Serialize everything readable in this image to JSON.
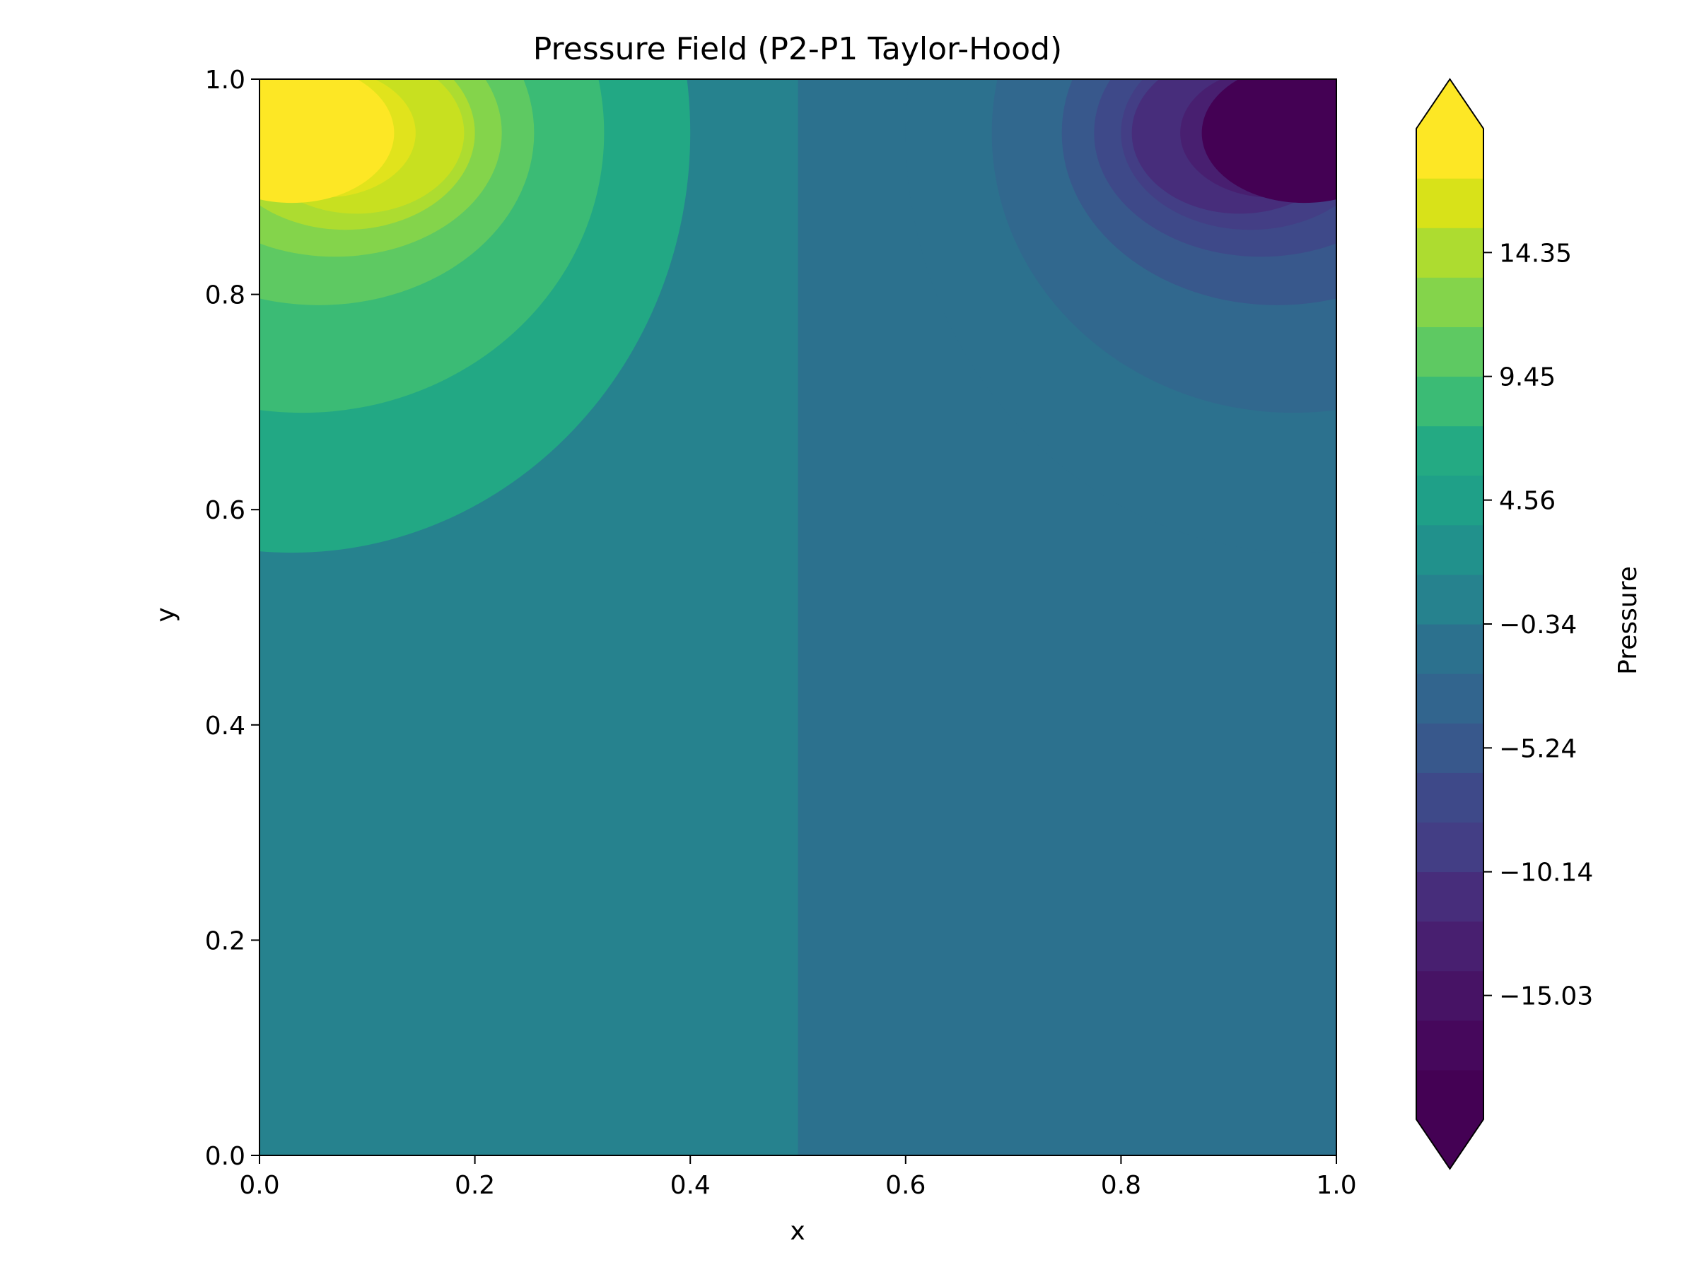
{
  "chart_data": {
    "type": "heatmap",
    "subtype": "filled-contour",
    "title": "Pressure Field (P2-P1 Taylor-Hood)",
    "xlabel": "x",
    "ylabel": "y",
    "xlim": [
      0.0,
      1.0
    ],
    "ylim": [
      0.0,
      1.0
    ],
    "x_ticks": [
      "0.0",
      "0.2",
      "0.4",
      "0.6",
      "0.8",
      "1.0"
    ],
    "y_ticks": [
      "0.0",
      "0.2",
      "0.4",
      "0.6",
      "0.8",
      "1.0"
    ],
    "grid": false,
    "colorbar": {
      "label": "Pressure",
      "colormap": "viridis",
      "extend": "both",
      "vmin": -19.93,
      "vmax": 19.25,
      "tick_values": [
        14.35,
        9.45,
        4.56,
        -0.34,
        -5.24,
        -10.14,
        -15.03
      ],
      "tick_labels": [
        "14.35",
        "9.45",
        "4.56",
        "−0.34",
        "−5.24",
        "−10.14",
        "−15.03"
      ],
      "level_colors": [
        "#440154",
        "#46085c",
        "#471365",
        "#481f70",
        "#472d7b",
        "#433e85",
        "#3e4989",
        "#38588c",
        "#32658e",
        "#2c718e",
        "#26828e",
        "#21918c",
        "#1fa088",
        "#24aa83",
        "#3bbb75",
        "#5ec962",
        "#84d44b",
        "#addc30",
        "#d8e219",
        "#fde725"
      ],
      "under_color": "#440154",
      "over_color": "#fde725"
    },
    "field": {
      "description_of_features": [
        "positive pressure peak at top-left corner",
        "negative pressure trough at top-right corner",
        "near-zero plateau with discontinuity at x = 0.5"
      ],
      "peak": {
        "x": 0.03,
        "y": 0.95,
        "value": 19.0
      },
      "trough": {
        "x": 0.97,
        "y": 0.95,
        "value": -19.5
      },
      "plateau_left": 1.2,
      "plateau_right": -1.5,
      "discontinuity_x": 0.5
    },
    "contour_bands": [
      {
        "side": "left",
        "color_index": 16,
        "center": [
          0.03,
          0.95
        ],
        "radius_x": 0.37,
        "radius_y": 0.39
      },
      {
        "side": "left",
        "color_index": 17,
        "center": [
          0.04,
          0.95
        ],
        "radius_x": 0.28,
        "radius_y": 0.26
      },
      {
        "side": "left",
        "color_index": 18,
        "center": [
          0.055,
          0.95
        ],
        "radius_x": 0.2,
        "radius_y": 0.16
      },
      {
        "side": "left",
        "color_index": 19,
        "center": [
          0.07,
          0.95
        ],
        "radius_x": 0.155,
        "radius_y": 0.115
      },
      {
        "side": "left",
        "color_index": 20,
        "center": [
          0.08,
          0.95
        ],
        "radius_x": 0.12,
        "radius_y": 0.09
      },
      {
        "side": "left",
        "color_index": 21,
        "center": [
          0.09,
          0.95
        ],
        "radius_x": 0.1,
        "radius_y": 0.075
      },
      {
        "side": "left",
        "color_index": 22,
        "center": [
          0.06,
          0.95
        ],
        "radius_x": 0.085,
        "radius_y": 0.06
      },
      {
        "side": "left",
        "color_index": 23,
        "center": [
          0.03,
          0.95
        ],
        "radius_x": 0.095,
        "radius_y": 0.065
      },
      {
        "side": "right",
        "color_index": 14,
        "center": [
          0.97,
          0.95
        ],
        "radius_x": 0.37,
        "radius_y": 0.39
      },
      {
        "side": "right",
        "color_index": 13,
        "center": [
          0.96,
          0.95
        ],
        "radius_x": 0.28,
        "radius_y": 0.26
      },
      {
        "side": "right",
        "color_index": 12,
        "center": [
          0.945,
          0.95
        ],
        "radius_x": 0.2,
        "radius_y": 0.16
      },
      {
        "side": "right",
        "color_index": 11,
        "center": [
          0.93,
          0.95
        ],
        "radius_x": 0.155,
        "radius_y": 0.115
      },
      {
        "side": "right",
        "color_index": 10,
        "center": [
          0.92,
          0.95
        ],
        "radius_x": 0.12,
        "radius_y": 0.09
      },
      {
        "side": "right",
        "color_index": 9,
        "center": [
          0.91,
          0.95
        ],
        "radius_x": 0.1,
        "radius_y": 0.075
      },
      {
        "side": "right",
        "color_index": 8,
        "center": [
          0.94,
          0.95
        ],
        "radius_x": 0.085,
        "radius_y": 0.06
      },
      {
        "side": "right",
        "color_index": 7,
        "center": [
          0.97,
          0.95
        ],
        "radius_x": 0.095,
        "radius_y": 0.065
      }
    ]
  }
}
